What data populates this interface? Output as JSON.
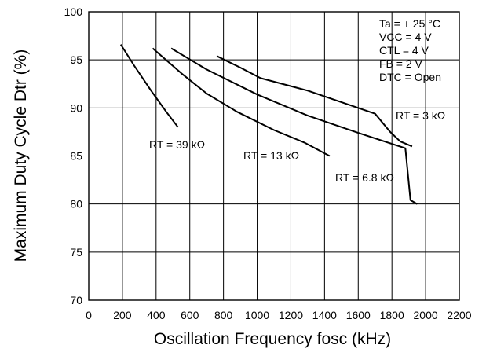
{
  "chart_data": {
    "type": "line",
    "xlabel": "Oscillation Frequency fosc (kHz)",
    "ylabel": "Maximum Duty Cycle Dtr (%)",
    "xlim": [
      0,
      2200
    ],
    "ylim": [
      70,
      100
    ],
    "x_ticks": [
      0,
      200,
      400,
      600,
      800,
      1000,
      1200,
      1400,
      1600,
      1800,
      2000,
      2200
    ],
    "y_ticks": [
      70,
      75,
      80,
      85,
      90,
      95,
      100
    ],
    "grid": true,
    "conditions": [
      "Ta = + 25 °C",
      "VCC = 4 V",
      "CTL = 4 V",
      "FB = 2 V",
      "DTC = Open"
    ],
    "series": [
      {
        "name": "RT = 39 kΩ",
        "x": [
          190,
          270,
          370,
          460,
          530
        ],
        "y": [
          96.6,
          94.4,
          91.8,
          89.6,
          88.0
        ]
      },
      {
        "name": "RT = 13 kΩ",
        "x": [
          380,
          550,
          700,
          880,
          1100,
          1280,
          1430
        ],
        "y": [
          96.2,
          93.6,
          91.5,
          89.6,
          87.7,
          86.4,
          85.0
        ]
      },
      {
        "name": "RT = 6.8 kΩ",
        "x": [
          490,
          700,
          1000,
          1300,
          1600,
          1880,
          1910,
          1920,
          1950
        ],
        "y": [
          96.2,
          94.0,
          91.4,
          89.2,
          87.4,
          85.8,
          80.4,
          80.3,
          80.0
        ]
      },
      {
        "name": "RT = 3 kΩ",
        "x": [
          760,
          900,
          1020,
          1300,
          1700,
          1790,
          1850,
          1920
        ],
        "y": [
          95.4,
          94.2,
          93.1,
          91.8,
          89.4,
          87.5,
          86.5,
          86.0
        ]
      }
    ],
    "series_labels": [
      "RT = 39 kΩ",
      "RT = 13 kΩ",
      "RT = 6.8 kΩ",
      "RT = 3 kΩ"
    ]
  }
}
